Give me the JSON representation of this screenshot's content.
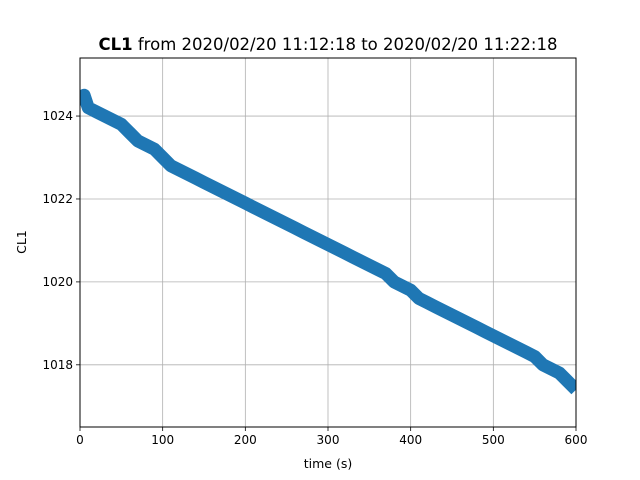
{
  "chart_data": {
    "type": "line",
    "title_bold": "CL1",
    "title_rest": " from 2020/02/20 11:12:18 to 2020/02/20 11:22:18",
    "xlabel": "time (s)",
    "ylabel": "CL1",
    "xlim": [
      0,
      600
    ],
    "ylim": [
      1016.5,
      1025.4
    ],
    "xticks": [
      0,
      100,
      200,
      300,
      400,
      500,
      600
    ],
    "yticks": [
      1018,
      1020,
      1022,
      1024
    ],
    "grid": true,
    "color": "#1f77b4",
    "series": [
      {
        "x": [
          0,
          5,
          10,
          20,
          30,
          40,
          50,
          60,
          70,
          80,
          90,
          100,
          110,
          120,
          130,
          140,
          150,
          160,
          170,
          180,
          190,
          200,
          210,
          220,
          230,
          240,
          250,
          260,
          270,
          280,
          290,
          300,
          310,
          320,
          330,
          340,
          350,
          360,
          370,
          380,
          390,
          400,
          410,
          420,
          430,
          440,
          450,
          460,
          470,
          480,
          490,
          500,
          510,
          520,
          530,
          540,
          550,
          560,
          570,
          580,
          590,
          600
        ],
        "y": [
          1024.3,
          1024.5,
          1024.2,
          1024.1,
          1024.0,
          1023.9,
          1023.8,
          1023.6,
          1023.4,
          1023.3,
          1023.2,
          1023.0,
          1022.8,
          1022.7,
          1022.6,
          1022.5,
          1022.4,
          1022.3,
          1022.2,
          1022.1,
          1022.0,
          1021.9,
          1021.8,
          1021.7,
          1021.6,
          1021.5,
          1021.4,
          1021.3,
          1021.2,
          1021.1,
          1021.0,
          1020.9,
          1020.8,
          1020.7,
          1020.6,
          1020.5,
          1020.4,
          1020.3,
          1020.2,
          1020.0,
          1019.9,
          1019.8,
          1019.6,
          1019.5,
          1019.4,
          1019.3,
          1019.2,
          1019.1,
          1019.0,
          1018.9,
          1018.8,
          1018.7,
          1018.6,
          1018.5,
          1018.4,
          1018.3,
          1018.2,
          1018.0,
          1017.9,
          1017.8,
          1017.6,
          1017.4
        ]
      }
    ]
  }
}
